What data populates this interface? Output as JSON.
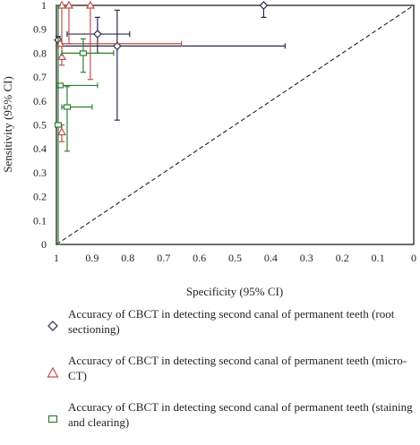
{
  "chart_data": {
    "type": "scatter",
    "xlabel": "Specificity (95% CI)",
    "ylabel": "Sensitivity (95% CI)",
    "xlim": [
      1,
      0
    ],
    "ylim": [
      0,
      1
    ],
    "x_ticks": [
      "1",
      "0.9",
      "0.8",
      "0.7",
      "0.6",
      "0.5",
      "0.4",
      "0.3",
      "0.2",
      "0.1",
      "0"
    ],
    "y_ticks": [
      "0",
      "0.1",
      "0.2",
      "0.3",
      "0.4",
      "0.5",
      "0.6",
      "0.7",
      "0.8",
      "0.9",
      "1"
    ],
    "reference_line": "diagonal (dashed)",
    "grid": false,
    "legend_position": "bottom",
    "series": [
      {
        "name": "Accuracy of CBCT in detecting second canal of permanent teeth (root sectioning)",
        "marker": "diamond",
        "color": "#2a2a4a",
        "points": [
          {
            "x": 0.42,
            "y": 1.0,
            "x_ci": [
              0.42,
              0.42
            ],
            "y_ci": [
              0.95,
              1.0
            ]
          },
          {
            "x": 0.885,
            "y": 0.88,
            "x_ci": [
              0.795,
              0.97
            ],
            "y_ci": [
              0.8,
              0.95
            ]
          },
          {
            "x": 0.83,
            "y": 0.83,
            "x_ci": [
              0.995,
              0.36
            ],
            "y_ci": [
              0.52,
              0.98
            ]
          },
          {
            "x": 0.995,
            "y": 0.855,
            "x_ci": [
              0.995,
              0.995
            ],
            "y_ci": [
              0.83,
              0.87
            ]
          }
        ]
      },
      {
        "name": "Accuracy of CBCT in detecting second canal of permanent teeth (micro-CT)",
        "marker": "triangle",
        "color": "#c0504d",
        "points": [
          {
            "x": 0.985,
            "y": 1.0,
            "x_ci": [
              0.985,
              0.985
            ],
            "y_ci": [
              0.84,
              1.0
            ]
          },
          {
            "x": 0.965,
            "y": 1.0,
            "x_ci": [
              0.965,
              0.965
            ],
            "y_ci": [
              0.84,
              1.0
            ]
          },
          {
            "x": 0.905,
            "y": 1.0,
            "x_ci": [
              0.905,
              0.905
            ],
            "y_ci": [
              0.69,
              1.0
            ]
          },
          {
            "x": 0.985,
            "y": 0.785,
            "x_ci": [
              0.985,
              0.985
            ],
            "y_ci": [
              0.75,
              0.84
            ]
          },
          {
            "x": 0.985,
            "y": 0.47,
            "x_ci": [
              0.985,
              0.985
            ],
            "y_ci": [
              0.43,
              0.5
            ]
          },
          {
            "x": 0.99,
            "y": 0.84,
            "x_ci": [
              0.995,
              0.65
            ],
            "y_ci": [
              0.84,
              0.84
            ]
          }
        ]
      },
      {
        "name": "Accuracy of CBCT in detecting second canal of permanent teeth (staining and clearing)",
        "marker": "square",
        "color": "#2e7d32",
        "points": [
          {
            "x": 0.925,
            "y": 0.8,
            "x_ci": [
              0.985,
              0.84
            ],
            "y_ci": [
              0.72,
              0.86
            ]
          },
          {
            "x": 0.97,
            "y": 0.575,
            "x_ci": [
              0.985,
              0.9
            ],
            "y_ci": [
              0.39,
              0.66
            ]
          },
          {
            "x": 0.99,
            "y": 0.665,
            "x_ci": [
              0.995,
              0.885
            ],
            "y_ci": [
              0.665,
              0.665
            ]
          },
          {
            "x": 0.995,
            "y": 0.5,
            "x_ci": [
              0.995,
              0.995
            ],
            "y_ci": [
              0.0,
              1.0
            ]
          }
        ]
      }
    ]
  }
}
